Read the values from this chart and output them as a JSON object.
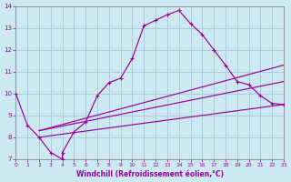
{
  "xlabel": "Windchill (Refroidissement éolien,°C)",
  "bg_color": "#cce8f0",
  "line_color": "#990099",
  "grid_color": "#aaccdd",
  "xlim": [
    0,
    23
  ],
  "ylim": [
    7,
    14
  ],
  "xticks": [
    0,
    1,
    2,
    3,
    4,
    5,
    6,
    7,
    8,
    9,
    10,
    11,
    12,
    13,
    14,
    15,
    16,
    17,
    18,
    19,
    20,
    21,
    22,
    23
  ],
  "yticks": [
    7,
    8,
    9,
    10,
    11,
    12,
    13,
    14
  ],
  "line1_x": [
    0,
    1,
    2,
    3,
    4,
    4,
    5,
    6,
    7,
    8,
    9,
    10,
    11,
    12,
    13,
    14,
    15,
    16,
    17,
    18,
    19,
    20,
    21,
    22,
    23
  ],
  "line1_y": [
    10.0,
    8.55,
    8.0,
    7.3,
    7.0,
    7.3,
    8.25,
    8.7,
    9.9,
    10.5,
    10.7,
    11.6,
    13.1,
    13.35,
    13.6,
    13.8,
    13.2,
    12.7,
    12.0,
    11.3,
    10.55,
    10.4,
    9.9,
    9.55,
    9.5
  ],
  "line2_x": [
    2,
    23
  ],
  "line2_y": [
    8.0,
    9.5
  ],
  "line3_x": [
    2,
    23
  ],
  "line3_y": [
    8.3,
    10.55
  ],
  "line4_x": [
    2,
    23
  ],
  "line4_y": [
    8.3,
    11.3
  ]
}
